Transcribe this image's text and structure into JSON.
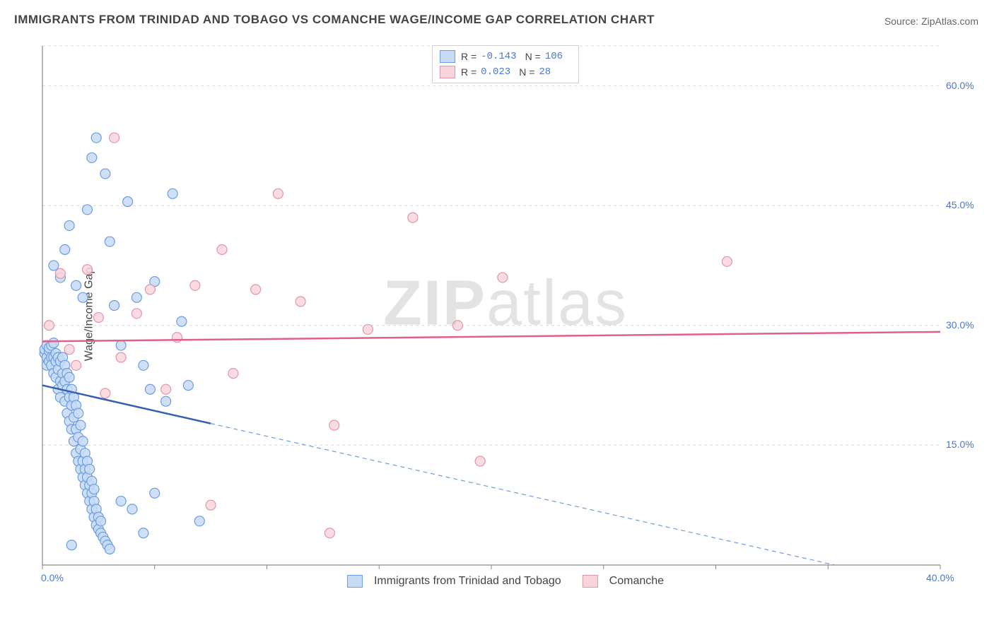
{
  "title": "IMMIGRANTS FROM TRINIDAD AND TOBAGO VS COMANCHE WAGE/INCOME GAP CORRELATION CHART",
  "source": "Source: ZipAtlas.com",
  "watermark": "ZIPatlas",
  "chart": {
    "type": "scatter",
    "ylabel": "Wage/Income Gap",
    "background_color": "#ffffff",
    "grid_color": "#d8d8d8",
    "axis_color": "#888888",
    "tick_color": "#4a77d4",
    "tick_fontsize": 14,
    "title_fontsize": 17,
    "marker_radius": 7,
    "marker_stroke_width": 1.2,
    "trend_line_width": 2.5,
    "xlim": [
      0.0,
      40.0
    ],
    "ylim": [
      0.0,
      65.0
    ],
    "xticks": [
      0.0,
      40.0
    ],
    "yticks": [
      15.0,
      30.0,
      45.0,
      60.0
    ],
    "xtick_labels": [
      "0.0%",
      "40.0%"
    ],
    "ytick_labels": [
      "15.0%",
      "30.0%",
      "45.0%",
      "60.0%"
    ],
    "series": [
      {
        "key": "trinidad",
        "label": "Immigrants from Trinidad and Tobago",
        "fill": "#c7dbf5",
        "stroke": "#6b9de0",
        "trend_color": "#3560b0",
        "trend_dash_color": "#6b9de0",
        "R": "-0.143",
        "N": "106",
        "trend": {
          "y_at_x0": 22.5,
          "y_at_x40": -3.0,
          "solid_to_x": 7.5
        },
        "points": [
          [
            0.1,
            26.5
          ],
          [
            0.1,
            27.0
          ],
          [
            0.2,
            26.0
          ],
          [
            0.2,
            27.5
          ],
          [
            0.2,
            25.0
          ],
          [
            0.3,
            26.8
          ],
          [
            0.3,
            25.5
          ],
          [
            0.3,
            27.2
          ],
          [
            0.4,
            26.0
          ],
          [
            0.4,
            25.0
          ],
          [
            0.4,
            27.5
          ],
          [
            0.5,
            24.0
          ],
          [
            0.5,
            26.0
          ],
          [
            0.5,
            27.8
          ],
          [
            0.6,
            25.5
          ],
          [
            0.6,
            23.5
          ],
          [
            0.6,
            26.5
          ],
          [
            0.7,
            24.5
          ],
          [
            0.7,
            22.0
          ],
          [
            0.7,
            26.0
          ],
          [
            0.8,
            23.0
          ],
          [
            0.8,
            25.5
          ],
          [
            0.8,
            21.0
          ],
          [
            0.9,
            24.0
          ],
          [
            0.9,
            22.5
          ],
          [
            0.9,
            26.0
          ],
          [
            1.0,
            20.5
          ],
          [
            1.0,
            23.0
          ],
          [
            1.0,
            25.0
          ],
          [
            1.1,
            19.0
          ],
          [
            1.1,
            22.0
          ],
          [
            1.1,
            24.0
          ],
          [
            1.2,
            18.0
          ],
          [
            1.2,
            21.0
          ],
          [
            1.2,
            23.5
          ],
          [
            1.3,
            17.0
          ],
          [
            1.3,
            20.0
          ],
          [
            1.3,
            22.0
          ],
          [
            1.4,
            15.5
          ],
          [
            1.4,
            18.5
          ],
          [
            1.4,
            21.0
          ],
          [
            1.5,
            14.0
          ],
          [
            1.5,
            17.0
          ],
          [
            1.5,
            20.0
          ],
          [
            1.6,
            13.0
          ],
          [
            1.6,
            16.0
          ],
          [
            1.6,
            19.0
          ],
          [
            1.7,
            12.0
          ],
          [
            1.7,
            14.5
          ],
          [
            1.7,
            17.5
          ],
          [
            1.8,
            11.0
          ],
          [
            1.8,
            13.0
          ],
          [
            1.8,
            15.5
          ],
          [
            1.9,
            10.0
          ],
          [
            1.9,
            12.0
          ],
          [
            1.9,
            14.0
          ],
          [
            2.0,
            9.0
          ],
          [
            2.0,
            11.0
          ],
          [
            2.0,
            13.0
          ],
          [
            2.1,
            8.0
          ],
          [
            2.1,
            10.0
          ],
          [
            2.1,
            12.0
          ],
          [
            2.2,
            7.0
          ],
          [
            2.2,
            9.0
          ],
          [
            2.2,
            10.5
          ],
          [
            2.3,
            6.0
          ],
          [
            2.3,
            8.0
          ],
          [
            2.3,
            9.5
          ],
          [
            2.4,
            5.0
          ],
          [
            2.4,
            7.0
          ],
          [
            2.5,
            4.5
          ],
          [
            2.5,
            6.0
          ],
          [
            2.6,
            4.0
          ],
          [
            2.6,
            5.5
          ],
          [
            2.7,
            3.5
          ],
          [
            2.8,
            3.0
          ],
          [
            2.9,
            2.5
          ],
          [
            3.0,
            2.0
          ],
          [
            0.5,
            37.5
          ],
          [
            0.8,
            36.0
          ],
          [
            1.0,
            39.5
          ],
          [
            1.2,
            42.5
          ],
          [
            1.5,
            35.0
          ],
          [
            1.8,
            33.5
          ],
          [
            2.0,
            44.5
          ],
          [
            2.2,
            51.0
          ],
          [
            2.4,
            53.5
          ],
          [
            2.8,
            49.0
          ],
          [
            3.0,
            40.5
          ],
          [
            3.2,
            32.5
          ],
          [
            3.5,
            27.5
          ],
          [
            3.8,
            45.5
          ],
          [
            4.2,
            33.5
          ],
          [
            4.5,
            25.0
          ],
          [
            4.8,
            22.0
          ],
          [
            5.0,
            35.5
          ],
          [
            5.5,
            20.5
          ],
          [
            5.8,
            46.5
          ],
          [
            6.2,
            30.5
          ],
          [
            6.5,
            22.5
          ],
          [
            7.0,
            5.5
          ],
          [
            3.5,
            8.0
          ],
          [
            4.0,
            7.0
          ],
          [
            4.5,
            4.0
          ],
          [
            5.0,
            9.0
          ],
          [
            1.3,
            2.5
          ]
        ]
      },
      {
        "key": "comanche",
        "label": "Comanche",
        "fill": "#f8d5dd",
        "stroke": "#e296ac",
        "trend_color": "#e06088",
        "R": "0.023",
        "N": "28",
        "trend": {
          "y_at_x0": 28.0,
          "y_at_x40": 29.2,
          "solid_to_x": 40.0
        },
        "points": [
          [
            0.3,
            30.0
          ],
          [
            0.8,
            36.5
          ],
          [
            1.2,
            27.0
          ],
          [
            1.5,
            25.0
          ],
          [
            2.0,
            37.0
          ],
          [
            2.5,
            31.0
          ],
          [
            2.8,
            21.5
          ],
          [
            3.2,
            53.5
          ],
          [
            3.5,
            26.0
          ],
          [
            4.2,
            31.5
          ],
          [
            4.8,
            34.5
          ],
          [
            5.5,
            22.0
          ],
          [
            6.0,
            28.5
          ],
          [
            6.8,
            35.0
          ],
          [
            7.5,
            7.5
          ],
          [
            8.0,
            39.5
          ],
          [
            8.5,
            24.0
          ],
          [
            9.5,
            34.5
          ],
          [
            10.5,
            46.5
          ],
          [
            11.5,
            33.0
          ],
          [
            12.8,
            4.0
          ],
          [
            13.0,
            17.5
          ],
          [
            14.5,
            29.5
          ],
          [
            16.5,
            43.5
          ],
          [
            18.5,
            30.0
          ],
          [
            19.5,
            13.0
          ],
          [
            20.5,
            36.0
          ],
          [
            30.5,
            38.0
          ]
        ]
      }
    ]
  }
}
